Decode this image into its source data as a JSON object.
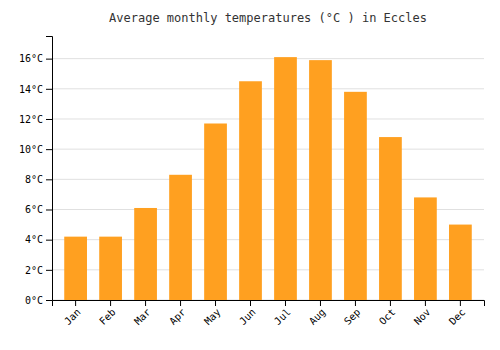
{
  "chart_data": {
    "type": "bar",
    "title": "Average monthly temperatures (°C ) in Eccles",
    "categories": [
      "Jan",
      "Feb",
      "Mar",
      "Apr",
      "May",
      "Jun",
      "Jul",
      "Aug",
      "Sep",
      "Oct",
      "Nov",
      "Dec"
    ],
    "values": [
      4.2,
      4.2,
      6.1,
      8.3,
      11.7,
      14.5,
      16.1,
      15.9,
      13.8,
      10.8,
      6.8,
      5.0
    ],
    "color": "#FFA020",
    "ylim": [
      0,
      17.5
    ],
    "yticks": [
      {
        "value": 0,
        "label": "0°C"
      },
      {
        "value": 2,
        "label": "2°C"
      },
      {
        "value": 4,
        "label": "4°C"
      },
      {
        "value": 6,
        "label": "6°C"
      },
      {
        "value": 8,
        "label": "8°C"
      },
      {
        "value": 10,
        "label": "10°C"
      },
      {
        "value": 12,
        "label": "12°C"
      },
      {
        "value": 14,
        "label": "14°C"
      },
      {
        "value": 16,
        "label": "16°C"
      }
    ],
    "grid": true
  }
}
